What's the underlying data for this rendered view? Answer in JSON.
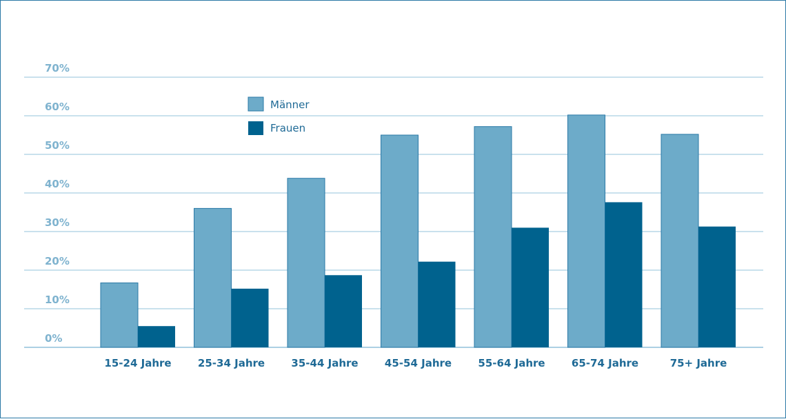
{
  "chart_data": {
    "type": "bar",
    "categories": [
      "15-24 Jahre",
      "25-34 Jahre",
      "35-44 Jahre",
      "45-54 Jahre",
      "55-64 Jahre",
      "65-74 Jahre",
      "75+ Jahre"
    ],
    "series": [
      {
        "name": "Männer",
        "color": "#6dabc9",
        "values": [
          16.7,
          36.0,
          43.8,
          55.0,
          57.2,
          60.2,
          55.2
        ]
      },
      {
        "name": "Frauen",
        "color": "#00628e",
        "values": [
          5.5,
          15.2,
          18.7,
          22.2,
          31.0,
          37.6,
          31.3
        ]
      }
    ],
    "yticks": [
      "0%",
      "10%",
      "20%",
      "30%",
      "40%",
      "50%",
      "60%",
      "70%"
    ],
    "ylim": [
      0,
      70
    ],
    "grid": true,
    "legend_position": "top-left",
    "title": "",
    "xlabel": "",
    "ylabel": ""
  }
}
